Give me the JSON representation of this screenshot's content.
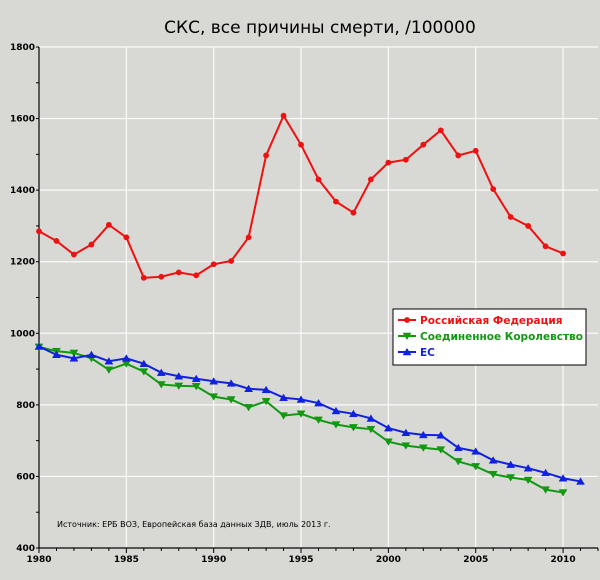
{
  "chart_data": {
    "type": "line",
    "title": "СКС, все причины смерти, /100000",
    "xlabel": "",
    "ylabel": "",
    "xlim": [
      1980,
      2012
    ],
    "ylim": [
      400,
      1800
    ],
    "x_ticks": [
      1980,
      1985,
      1990,
      1995,
      2000,
      2005,
      2010
    ],
    "y_ticks": [
      400,
      600,
      800,
      1000,
      1200,
      1400,
      1600,
      1800
    ],
    "source": "Источник: ЕРБ ВОЗ, Европейская база данных ЗДВ, июль 2013 г.",
    "legend_position": "right",
    "series": [
      {
        "name": "Российская Федерация",
        "color": "#ee1111",
        "marker": "circle",
        "x": [
          1980,
          1981,
          1982,
          1983,
          1984,
          1985,
          1986,
          1987,
          1988,
          1989,
          1990,
          1991,
          1992,
          1993,
          1994,
          1995,
          1996,
          1997,
          1998,
          1999,
          2000,
          2001,
          2002,
          2003,
          2004,
          2005,
          2006,
          2007,
          2008,
          2009,
          2010
        ],
        "values": [
          1285,
          1258,
          1220,
          1248,
          1303,
          1268,
          1155,
          1158,
          1170,
          1162,
          1193,
          1202,
          1268,
          1497,
          1608,
          1527,
          1430,
          1368,
          1337,
          1430,
          1477,
          1485,
          1527,
          1567,
          1497,
          1510,
          1403,
          1325,
          1300,
          1243,
          1223
        ]
      },
      {
        "name": "Соединенное Королевство",
        "color": "#119911",
        "marker": "triangle-down",
        "x": [
          1980,
          1981,
          1982,
          1983,
          1984,
          1985,
          1986,
          1987,
          1988,
          1989,
          1990,
          1991,
          1992,
          1993,
          1994,
          1995,
          1996,
          1997,
          1998,
          1999,
          2000,
          2001,
          2002,
          2003,
          2004,
          2005,
          2006,
          2007,
          2008,
          2009,
          2010
        ],
        "values": [
          962,
          950,
          945,
          930,
          898,
          915,
          893,
          857,
          853,
          852,
          823,
          815,
          793,
          810,
          770,
          775,
          758,
          745,
          737,
          732,
          697,
          686,
          680,
          675,
          642,
          628,
          606,
          597,
          590,
          563,
          555
        ]
      },
      {
        "name": "ЕС",
        "color": "#1122dd",
        "marker": "triangle-up",
        "x": [
          1980,
          1981,
          1982,
          1983,
          1984,
          1985,
          1986,
          1987,
          1988,
          1989,
          1990,
          1991,
          1992,
          1993,
          1994,
          1995,
          1996,
          1997,
          1998,
          1999,
          2000,
          2001,
          2002,
          2003,
          2004,
          2005,
          2006,
          2007,
          2008,
          2009,
          2010,
          2011
        ],
        "values": [
          963,
          940,
          930,
          940,
          922,
          930,
          915,
          890,
          880,
          873,
          866,
          860,
          845,
          842,
          820,
          815,
          805,
          783,
          775,
          762,
          735,
          722,
          716,
          715,
          680,
          670,
          645,
          633,
          623,
          610,
          595,
          586
        ]
      }
    ]
  }
}
